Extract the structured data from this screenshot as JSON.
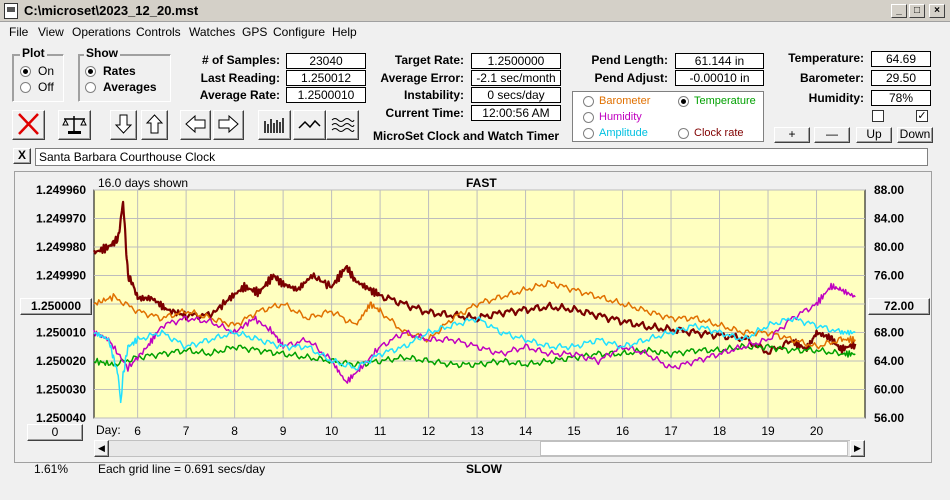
{
  "window": {
    "title": "C:\\microset\\2023_12_20.mst"
  },
  "menu": [
    "File",
    "View",
    "Operations",
    "Controls",
    "Watches",
    "GPS",
    "Configure",
    "Help"
  ],
  "plot": {
    "title": "Plot",
    "on": "On",
    "off": "Off",
    "selected": "On"
  },
  "show": {
    "title": "Show",
    "rates": "Rates",
    "averages": "Averages",
    "selected": "Rates"
  },
  "stats": {
    "samples_label": "# of Samples:",
    "samples": "23040",
    "last_label": "Last Reading:",
    "last": "1.250012",
    "avg_label": "Average Rate:",
    "avg": "1.2500010"
  },
  "rates": {
    "target_label": "Target Rate:",
    "target": "1.2500000",
    "error_label": "Average Error:",
    "error": "-2.1 sec/month",
    "instab_label": "Instability:",
    "instab": "0 secs/day",
    "time_label": "Current Time:",
    "time": "12:00:56 AM"
  },
  "pend": {
    "length_label": "Pend Length:",
    "length": "61.144 in",
    "adjust_label": "Pend Adjust:",
    "adjust": "-0.00010 in"
  },
  "env": {
    "temp_label": "Temperature:",
    "temp": "64.69",
    "baro_label": "Barometer:",
    "baro": "29.50",
    "hum_label": "Humidity:",
    "hum": "78%"
  },
  "series_radios": [
    {
      "label": "Barometer",
      "color": "#e07000",
      "selected": false
    },
    {
      "label": "Temperature",
      "color": "#00a000",
      "selected": true
    },
    {
      "label": "Humidity",
      "color": "#c000c0",
      "selected": false
    },
    {
      "label": "Clock rate",
      "color": "#800000",
      "selected": false
    },
    {
      "label": "Amplitude",
      "color": "#00c0e0",
      "selected": false
    }
  ],
  "app_title": "MicroSet Clock and Watch Timer",
  "scale_buttons": {
    "plus": "+",
    "minus": "—",
    "up": "Up",
    "down": "Down"
  },
  "clock_name": "Santa Barbara Courthouse Clock",
  "close_x": "X",
  "chart_header": {
    "days_shown": "16.0 days shown",
    "fast": "FAST",
    "slow": "SLOW",
    "grid": "Each grid line = 0.691 secs/day",
    "pct": "1.61%",
    "left_center": "1.250000",
    "right_center": "72.00",
    "zero_btn": "0",
    "day_label": "Day:"
  },
  "chart_data": {
    "type": "line",
    "y_left_ticks": [
      "1.249960",
      "1.249970",
      "1.249980",
      "1.249990",
      "1.250000",
      "1.250010",
      "1.250020",
      "1.250030",
      "1.250040"
    ],
    "y_right_ticks": [
      "88.00",
      "84.00",
      "80.00",
      "76.00",
      "72.00",
      "68.00",
      "64.00",
      "60.00",
      "56.00"
    ],
    "x_ticks": [
      "6",
      "7",
      "8",
      "9",
      "10",
      "11",
      "12",
      "13",
      "14",
      "15",
      "16",
      "17",
      "18",
      "19",
      "20"
    ],
    "x_range": [
      5.1,
      21
    ],
    "ylim_left": [
      1.24996,
      1.25004
    ],
    "ylim_right": [
      56,
      88
    ],
    "grid": true,
    "series": [
      {
        "color": "#7a0000",
        "axis": "left",
        "x": [
          5.1,
          5.4,
          5.6,
          5.7,
          5.8,
          5.9,
          6.0,
          6.3,
          6.6,
          7.0,
          7.5,
          7.9,
          8.2,
          8.5,
          8.8,
          9.0,
          9.3,
          9.6,
          10.0,
          10.3,
          10.5,
          10.8,
          11.0,
          11.5,
          12.0,
          12.5,
          13.0,
          13.5,
          14.0,
          14.5,
          15.0,
          15.5,
          16.0,
          16.5,
          17.0,
          17.5,
          18.0,
          18.5,
          19.0,
          19.5,
          19.8,
          20.0,
          20.3,
          20.5,
          20.8
        ],
        "y": [
          1.249982,
          1.24998,
          1.249977,
          1.249964,
          1.24999,
          1.249993,
          1.249998,
          1.249998,
          1.250002,
          1.250004,
          1.250004,
          1.249998,
          1.249994,
          1.249996,
          1.24999,
          1.249993,
          1.249995,
          1.24999,
          1.249994,
          1.249987,
          1.249992,
          1.249995,
          1.249997,
          1.25,
          1.250003,
          1.250004,
          1.250005,
          1.250003,
          1.250002,
          1.250001,
          1.250002,
          1.250004,
          1.250006,
          1.250008,
          1.250009,
          1.25001,
          1.250011,
          1.250012,
          1.250017,
          1.250013,
          1.250016,
          1.25001,
          1.250012,
          1.250016,
          1.250014
        ]
      },
      {
        "color": "#e07000",
        "axis": "right",
        "x": [
          5.1,
          5.5,
          6.0,
          6.5,
          7.0,
          7.5,
          8.0,
          8.5,
          9.0,
          9.5,
          10.0,
          10.5,
          10.8,
          11.0,
          11.5,
          12.0,
          12.5,
          13.0,
          13.5,
          14.0,
          14.5,
          15.0,
          15.5,
          16.0,
          16.5,
          17.0,
          17.5,
          18.0,
          18.5,
          19.0,
          19.5,
          20.0,
          20.5,
          20.8
        ],
        "y": [
          72,
          73,
          71,
          70,
          71,
          70,
          69,
          71,
          72,
          70,
          71,
          69,
          72,
          71,
          68,
          67,
          70,
          72,
          73,
          74,
          75,
          74,
          73,
          72,
          71,
          70,
          70,
          69,
          68,
          68,
          67,
          66,
          67,
          67
        ]
      },
      {
        "color": "#00a000",
        "axis": "right",
        "x": [
          5.1,
          5.5,
          6.0,
          6.5,
          7.0,
          7.5,
          8.0,
          8.5,
          9.0,
          9.5,
          10.0,
          10.5,
          11.0,
          11.5,
          12.0,
          12.5,
          13.0,
          13.5,
          14.0,
          14.5,
          15.0,
          15.5,
          16.0,
          16.5,
          17.0,
          17.5,
          18.0,
          18.5,
          19.0,
          19.5,
          20.0,
          20.5,
          20.8
        ],
        "y": [
          64,
          63.5,
          64.5,
          65,
          65.5,
          65,
          66,
          65.5,
          65,
          64.5,
          64,
          63.5,
          64,
          64.5,
          64,
          63.5,
          63.5,
          64,
          63.5,
          64,
          64.5,
          65,
          65,
          65.5,
          65,
          65.5,
          65.5,
          66,
          66,
          65.5,
          65.5,
          65,
          65
        ]
      },
      {
        "color": "#c000c0",
        "axis": "right",
        "x": [
          5.1,
          5.4,
          5.8,
          6.2,
          6.5,
          7.0,
          7.5,
          8.0,
          8.4,
          8.8,
          9.0,
          9.5,
          10.0,
          10.3,
          10.6,
          11.0,
          11.5,
          12.0,
          12.5,
          13.0,
          13.5,
          14.0,
          14.5,
          15.0,
          15.5,
          16.0,
          16.5,
          17.0,
          17.5,
          18.0,
          18.5,
          19.0,
          19.5,
          20.0,
          20.3,
          20.5,
          20.8
        ],
        "y": [
          68,
          67,
          63,
          66,
          69,
          70,
          69.5,
          68,
          70,
          68,
          66,
          67,
          64,
          61,
          63,
          66,
          68,
          67,
          67,
          66,
          65,
          66,
          65,
          65,
          64,
          66,
          65,
          63,
          64,
          65,
          66,
          67,
          70,
          72,
          74.5,
          74,
          73
        ]
      },
      {
        "color": "#20e0ff",
        "axis": "right",
        "x": [
          5.1,
          5.4,
          5.6,
          5.65,
          5.7,
          5.8,
          6.0,
          6.5,
          7.0,
          7.5,
          8.0,
          8.5,
          9.0,
          9.5,
          10.0,
          10.5,
          11.0,
          11.5,
          12.0,
          12.5,
          13.0,
          13.5,
          14.0,
          14.5,
          15.0,
          15.5,
          16.0,
          16.5,
          17.0,
          17.5,
          18.0,
          18.5,
          19.0,
          19.5,
          20.0,
          20.5,
          20.8
        ],
        "y": [
          68,
          67,
          62,
          58,
          62,
          66,
          67,
          68,
          66,
          67,
          68,
          67,
          66,
          66,
          64,
          63,
          65,
          66,
          68,
          69,
          70,
          68,
          67,
          66,
          66,
          67,
          66,
          67,
          68,
          69,
          68,
          67,
          69,
          70,
          69,
          68,
          68
        ]
      }
    ]
  }
}
